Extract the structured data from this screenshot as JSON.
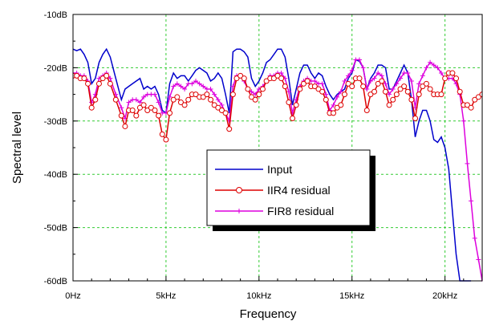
{
  "chart_data": {
    "type": "line",
    "title": "",
    "xlabel": "Frequency",
    "ylabel": "Spectral level",
    "xlim": [
      0,
      22000
    ],
    "ylim": [
      -60,
      -10
    ],
    "x_ticks": [
      {
        "value": 0,
        "label": "0Hz"
      },
      {
        "value": 5000,
        "label": "5kHz"
      },
      {
        "value": 10000,
        "label": "10kHz"
      },
      {
        "value": 15000,
        "label": "15kHz"
      },
      {
        "value": 20000,
        "label": "20kHz"
      }
    ],
    "y_ticks": [
      {
        "value": -10,
        "label": "-10dB"
      },
      {
        "value": -20,
        "label": "-20dB"
      },
      {
        "value": -30,
        "label": "-30dB"
      },
      {
        "value": -40,
        "label": "-40dB"
      },
      {
        "value": -50,
        "label": "-50dB"
      },
      {
        "value": -60,
        "label": "-60dB"
      }
    ],
    "grid": true,
    "legend_position": "center",
    "series": [
      {
        "name": "Input",
        "color": "#0000cc",
        "marker": "none",
        "x": [
          0,
          200,
          400,
          600,
          800,
          1000,
          1200,
          1400,
          1600,
          1800,
          2000,
          2300,
          2600,
          2800,
          3000,
          3200,
          3400,
          3600,
          3800,
          4000,
          4200,
          4400,
          4600,
          4800,
          5000,
          5200,
          5400,
          5600,
          5800,
          6000,
          6200,
          6400,
          6600,
          6800,
          7000,
          7200,
          7400,
          7600,
          7800,
          8000,
          8200,
          8400,
          8600,
          8800,
          9000,
          9200,
          9400,
          9600,
          9800,
          10000,
          10200,
          10400,
          10600,
          10800,
          11000,
          11200,
          11400,
          11600,
          11800,
          12000,
          12200,
          12400,
          12600,
          12800,
          13000,
          13200,
          13400,
          13600,
          13800,
          14000,
          14200,
          14400,
          14600,
          14800,
          15000,
          15200,
          15400,
          15600,
          15800,
          16000,
          16200,
          16400,
          16600,
          16800,
          17000,
          17200,
          17400,
          17600,
          17800,
          18000,
          18200,
          18400,
          18600,
          18800,
          19000,
          19200,
          19400,
          19600,
          19800,
          20000,
          20200,
          20400,
          20600,
          20800,
          21000,
          21200,
          21400,
          21600,
          21800,
          22000
        ],
        "y": [
          -16.5,
          -16.8,
          -16.5,
          -17.5,
          -19,
          -23,
          -22,
          -19,
          -17.5,
          -16.5,
          -18,
          -22,
          -26,
          -24,
          -23.5,
          -23,
          -22.5,
          -22,
          -24,
          -23.5,
          -24,
          -23.5,
          -25,
          -28,
          -28.5,
          -23,
          -21,
          -22,
          -21.5,
          -21.5,
          -22.5,
          -21.5,
          -20.5,
          -20,
          -20.5,
          -21,
          -22.5,
          -22,
          -21,
          -22,
          -25,
          -28.5,
          -17,
          -16.5,
          -16.5,
          -17,
          -18,
          -22,
          -23.5,
          -22.5,
          -21,
          -19,
          -18.5,
          -17.5,
          -16.5,
          -16.5,
          -18,
          -22,
          -27,
          -24,
          -21,
          -19.5,
          -19.5,
          -21,
          -22,
          -21,
          -21.5,
          -23.5,
          -25,
          -26,
          -25,
          -24.5,
          -24,
          -22,
          -21,
          -18.5,
          -18.8,
          -20,
          -24,
          -22,
          -21,
          -19.5,
          -19.5,
          -20,
          -24,
          -24,
          -22.5,
          -21,
          -19.5,
          -21,
          -26,
          -33,
          -30,
          -28,
          -28,
          -30,
          -33.5,
          -34,
          -33,
          -35,
          -39,
          -47,
          -55,
          -60,
          -60,
          -60,
          -60,
          -60,
          -60,
          -60
        ],
        "line_stop_x": 21550
      },
      {
        "name": "IIR4 residual",
        "color": "#dd0000",
        "marker": "circle",
        "x": [
          0,
          200,
          400,
          600,
          800,
          1000,
          1200,
          1400,
          1600,
          1800,
          2000,
          2300,
          2600,
          2800,
          3000,
          3200,
          3400,
          3600,
          3800,
          4000,
          4200,
          4400,
          4600,
          4800,
          5000,
          5200,
          5400,
          5600,
          5800,
          6000,
          6200,
          6400,
          6600,
          6800,
          7000,
          7200,
          7400,
          7600,
          7800,
          8000,
          8200,
          8400,
          8600,
          8800,
          9000,
          9200,
          9400,
          9600,
          9800,
          10000,
          10200,
          10400,
          10600,
          10800,
          11000,
          11200,
          11400,
          11600,
          11800,
          12000,
          12200,
          12400,
          12600,
          12800,
          13000,
          13200,
          13400,
          13600,
          13800,
          14000,
          14200,
          14400,
          14600,
          14800,
          15000,
          15200,
          15400,
          15600,
          15800,
          16000,
          16200,
          16400,
          16600,
          16800,
          17000,
          17200,
          17400,
          17600,
          17800,
          18000,
          18200,
          18400,
          18600,
          18800,
          19000,
          19200,
          19400,
          19600,
          19800,
          20000,
          20200,
          20400,
          20600,
          20800,
          21000,
          21200,
          21400,
          21600,
          21800,
          22000
        ],
        "y": [
          -21.5,
          -21.5,
          -22,
          -22,
          -23,
          -27.5,
          -26,
          -23,
          -22,
          -21.5,
          -23,
          -26,
          -29,
          -31,
          -28,
          -28,
          -29,
          -27.5,
          -27,
          -28,
          -27.5,
          -28,
          -29,
          -32.5,
          -33.5,
          -28.5,
          -26,
          -25.5,
          -26.5,
          -27,
          -26,
          -25,
          -25,
          -25.5,
          -25.5,
          -25,
          -26,
          -27,
          -27.5,
          -28,
          -28.5,
          -31.5,
          -25,
          -22,
          -21.5,
          -22,
          -24,
          -25.5,
          -26,
          -25,
          -24,
          -22.5,
          -22,
          -22,
          -21.5,
          -22,
          -23.5,
          -26.5,
          -29.5,
          -27,
          -24,
          -23,
          -22.5,
          -23.5,
          -23.5,
          -24,
          -24.5,
          -26,
          -28.5,
          -28.5,
          -27.5,
          -27,
          -25,
          -23,
          -23.5,
          -22,
          -22,
          -23.5,
          -28,
          -25,
          -24.5,
          -23,
          -22.5,
          -24.5,
          -27,
          -26,
          -25,
          -24,
          -23.5,
          -24.5,
          -26,
          -29.5,
          -25,
          -23.5,
          -23,
          -24,
          -25,
          -25,
          -25,
          -22,
          -21,
          -21,
          -22,
          -24.5,
          -27,
          -27,
          -27.5,
          -26,
          -25.5,
          -25
        ]
      },
      {
        "name": "FIR8 residual",
        "color": "#dd00dd",
        "marker": "plus",
        "x": [
          0,
          200,
          400,
          600,
          800,
          1000,
          1200,
          1400,
          1600,
          1800,
          2000,
          2300,
          2600,
          2800,
          3000,
          3200,
          3400,
          3600,
          3800,
          4000,
          4200,
          4400,
          4600,
          4800,
          5000,
          5200,
          5400,
          5600,
          5800,
          6000,
          6200,
          6400,
          6600,
          6800,
          7000,
          7200,
          7400,
          7600,
          7800,
          8000,
          8200,
          8400,
          8600,
          8800,
          9000,
          9200,
          9400,
          9600,
          9800,
          10000,
          10200,
          10400,
          10600,
          10800,
          11000,
          11200,
          11400,
          11600,
          11800,
          12000,
          12200,
          12400,
          12600,
          12800,
          13000,
          13200,
          13400,
          13600,
          13800,
          14000,
          14200,
          14400,
          14600,
          14800,
          15000,
          15200,
          15400,
          15600,
          15800,
          16000,
          16200,
          16400,
          16600,
          16800,
          17000,
          17200,
          17400,
          17600,
          17800,
          18000,
          18200,
          18400,
          18600,
          18800,
          19000,
          19200,
          19400,
          19600,
          19800,
          20000,
          20200,
          20400,
          20600,
          20800,
          21000,
          21200,
          21400,
          21600,
          21800,
          22000
        ],
        "y": [
          -21,
          -21,
          -21.5,
          -21.5,
          -22.5,
          -26.5,
          -25,
          -22,
          -21.5,
          -21,
          -22,
          -25,
          -27.5,
          -29.5,
          -26.5,
          -26,
          -26,
          -26.5,
          -25.5,
          -25,
          -25,
          -25,
          -26.5,
          -28.5,
          -28.5,
          -25.5,
          -23.5,
          -23,
          -23.5,
          -24,
          -23,
          -23,
          -22.5,
          -23,
          -23.5,
          -24,
          -24,
          -25,
          -26,
          -27,
          -28.5,
          -30,
          -23.5,
          -21.5,
          -21.5,
          -22.5,
          -24,
          -24.5,
          -25,
          -24,
          -23.5,
          -22.5,
          -21.5,
          -21.5,
          -21,
          -21,
          -22,
          -24.5,
          -28.5,
          -26,
          -23.5,
          -22.5,
          -22,
          -22.5,
          -22.5,
          -23,
          -23,
          -25,
          -28,
          -27,
          -25.5,
          -24.5,
          -22.5,
          -21.5,
          -20.5,
          -18.5,
          -18.5,
          -20,
          -24,
          -22.5,
          -22,
          -21,
          -21.5,
          -23,
          -25,
          -24,
          -23,
          -22,
          -21,
          -21,
          -22.5,
          -27.5,
          -23,
          -21.5,
          -20,
          -19,
          -19.5,
          -20,
          -21,
          -22,
          -22,
          -22,
          -23,
          -25,
          -30,
          -38,
          -45,
          -52,
          -56,
          -60
        ]
      }
    ]
  }
}
